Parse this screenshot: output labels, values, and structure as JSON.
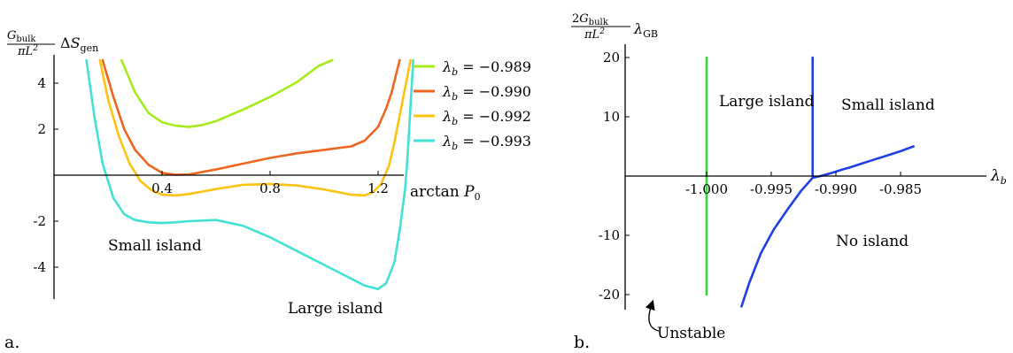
{
  "chart_data": [
    {
      "type": "line",
      "panel_label": "a.",
      "ylabel": "G_bulk/(πL²) ΔS_gen",
      "xlabel": "arctan P₀",
      "xlim": [
        0.0,
        1.4
      ],
      "ylim": [
        -6.0,
        5.0
      ],
      "xticks": [
        0.4,
        0.8,
        1.2
      ],
      "xtick_labels": [
        "0.4",
        "0.8",
        "1.2"
      ],
      "yticks": [
        -4,
        -2,
        2,
        4
      ],
      "ytick_labels": [
        "-4",
        "-2",
        "2",
        "4"
      ],
      "grid": false,
      "legend_position": "right",
      "annotations": [
        "Small island",
        "Large island"
      ],
      "series": [
        {
          "name": "λ_b = −0.989",
          "color": "#a6ec1a",
          "x": [
            0.25,
            0.3,
            0.35,
            0.4,
            0.45,
            0.5,
            0.55,
            0.6,
            0.7,
            0.8,
            0.9,
            0.98,
            1.03
          ],
          "y": [
            5.0,
            3.6,
            2.7,
            2.3,
            2.15,
            2.1,
            2.18,
            2.35,
            2.85,
            3.4,
            4.05,
            4.75,
            5.0
          ]
        },
        {
          "name": "λ_b = −0.990",
          "color": "#f0661f",
          "x": [
            0.18,
            0.22,
            0.26,
            0.3,
            0.35,
            0.4,
            0.45,
            0.5,
            0.6,
            0.7,
            0.8,
            0.9,
            1.0,
            1.1,
            1.15,
            1.2,
            1.23,
            1.25,
            1.265,
            1.28
          ],
          "y": [
            5.0,
            3.4,
            2.0,
            1.1,
            0.45,
            0.1,
            0.02,
            0.03,
            0.25,
            0.5,
            0.75,
            0.95,
            1.1,
            1.25,
            1.5,
            2.1,
            2.9,
            3.6,
            4.3,
            5.0
          ]
        },
        {
          "name": "λ_b = −0.992",
          "color": "#fcc311",
          "x": [
            0.17,
            0.2,
            0.24,
            0.28,
            0.32,
            0.36,
            0.4,
            0.45,
            0.5,
            0.6,
            0.7,
            0.8,
            0.9,
            1.0,
            1.1,
            1.15,
            1.18,
            1.21,
            1.24,
            1.26,
            1.28,
            1.3,
            1.32
          ],
          "y": [
            5.0,
            3.3,
            1.7,
            0.5,
            -0.25,
            -0.65,
            -0.85,
            -0.88,
            -0.82,
            -0.6,
            -0.42,
            -0.38,
            -0.45,
            -0.62,
            -0.85,
            -0.88,
            -0.75,
            -0.4,
            0.4,
            1.4,
            2.6,
            3.8,
            5.0
          ]
        },
        {
          "name": "λ_b = −0.993",
          "color": "#43e0d5",
          "x": [
            0.12,
            0.15,
            0.18,
            0.22,
            0.26,
            0.3,
            0.35,
            0.4,
            0.45,
            0.5,
            0.6,
            0.7,
            0.8,
            0.9,
            1.0,
            1.1,
            1.15,
            1.2,
            1.23,
            1.26,
            1.28,
            1.3,
            1.31,
            1.32,
            1.33
          ],
          "y": [
            5.0,
            2.5,
            0.5,
            -1.0,
            -1.7,
            -1.95,
            -2.05,
            -2.08,
            -2.05,
            -2.0,
            -1.95,
            -2.2,
            -2.7,
            -3.3,
            -3.9,
            -4.5,
            -4.8,
            -4.95,
            -4.7,
            -3.8,
            -2.4,
            -0.6,
            1.0,
            3.0,
            5.0
          ]
        }
      ]
    },
    {
      "type": "line",
      "panel_label": "b.",
      "ylabel": "2G_bulk/(πL²) λ_GB",
      "xlabel": "λ_b",
      "xlim": [
        -1.0035,
        -0.9835
      ],
      "ylim": [
        -22.0,
        20.0
      ],
      "xticks": [
        -1.0,
        -0.995,
        -0.99,
        -0.985
      ],
      "xtick_labels": [
        "-1.000",
        "-0.995",
        "-0.990",
        "-0.985"
      ],
      "yticks": [
        -20,
        -10,
        10,
        20
      ],
      "ytick_labels": [
        "-20",
        "-10",
        "10",
        "20"
      ],
      "grid": false,
      "regions": [
        "Large island",
        "Small island",
        "No island"
      ],
      "annotation": "Unstable",
      "series": [
        {
          "role": "boundary-green",
          "color": "#3ad23a",
          "x": [
            -1.0,
            -1.0
          ],
          "y": [
            -20.0,
            20.0
          ]
        },
        {
          "role": "boundary-vertical-blue",
          "color": "#1f3fe6",
          "x": [
            -0.9918,
            -0.9918
          ],
          "y": [
            0.0,
            20.0
          ]
        },
        {
          "role": "boundary-curve-blue",
          "color": "#1f3fe6",
          "x": [
            -0.9973,
            -0.9967,
            -0.9958,
            -0.9948,
            -0.9937,
            -0.9927,
            -0.9918,
            -0.9912,
            -0.9905,
            -0.99,
            -0.9895,
            -0.989,
            -0.988,
            -0.987,
            -0.986,
            -0.985,
            -0.984
          ],
          "y": [
            -22.0,
            -18.0,
            -13.0,
            -9.0,
            -5.5,
            -2.5,
            -0.3,
            0.0,
            0.4,
            0.75,
            1.1,
            1.4,
            2.1,
            2.8,
            3.5,
            4.2,
            5.0
          ]
        }
      ]
    }
  ]
}
